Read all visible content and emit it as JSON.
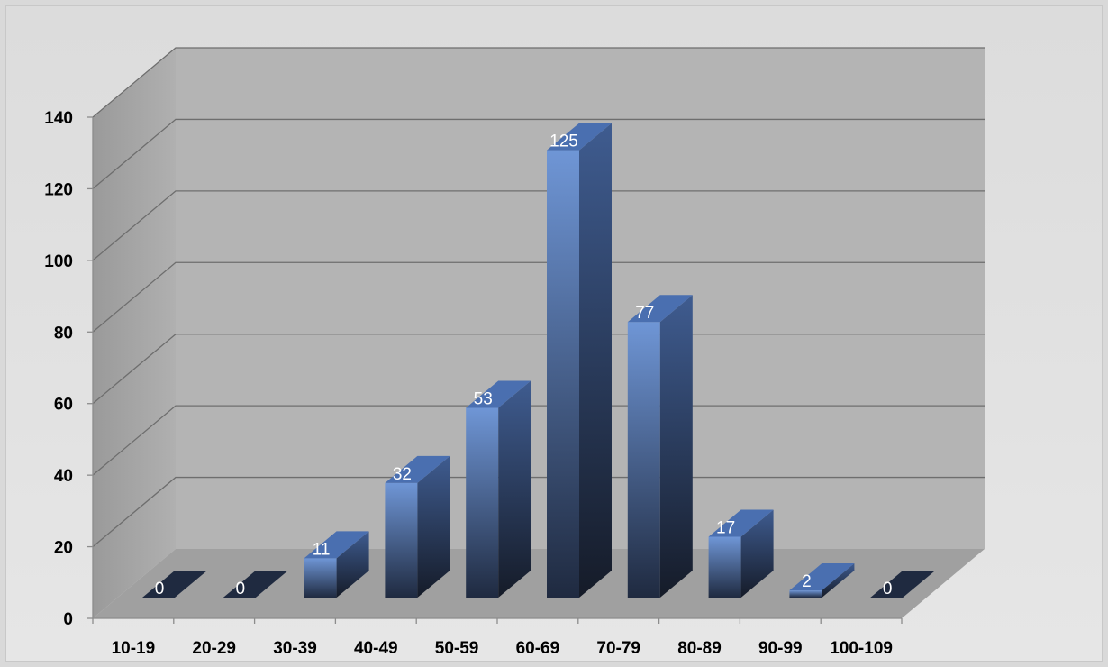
{
  "chart_data": {
    "type": "bar",
    "categories": [
      "10-19",
      "20-29",
      "30-39",
      "40-49",
      "50-59",
      "60-69",
      "70-79",
      "80-89",
      "90-99",
      "100-109"
    ],
    "values": [
      0,
      0,
      11,
      32,
      53,
      125,
      77,
      17,
      2,
      0
    ],
    "data_labels": [
      "0",
      "0",
      "11",
      "32",
      "53",
      "125",
      "77",
      "17",
      "2",
      "0"
    ],
    "title": "",
    "xlabel": "",
    "ylabel": "",
    "ylim": [
      0,
      140
    ],
    "yticks": [
      "0",
      "20",
      "40",
      "60",
      "80",
      "100",
      "120",
      "140"
    ],
    "grid": true,
    "legend": "none",
    "style": "3d-column",
    "colors": {
      "bar_front_top": "#6f96d6",
      "bar_front_bottom": "#1f2a40",
      "bar_side_top": "#3f5c90",
      "bar_side_bottom": "#151b28",
      "bar_top": "#4a6fb0",
      "back_wall": "#b4b4b4",
      "side_wall": "#a8a8a8",
      "floor": "#a0a0a0",
      "gridline": "#6e6e6e"
    }
  }
}
